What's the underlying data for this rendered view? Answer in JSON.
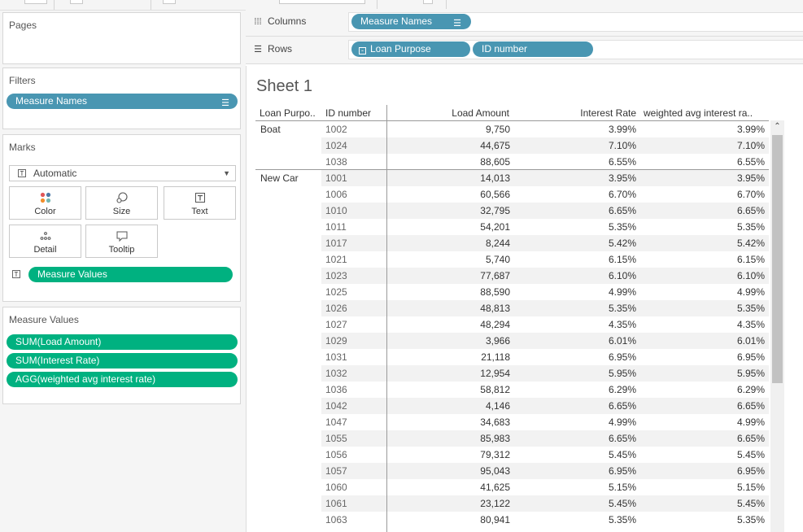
{
  "panels": {
    "pages_title": "Pages",
    "filters_title": "Filters",
    "marks_title": "Marks",
    "measure_values_title": "Measure Values"
  },
  "filters": {
    "pill": "Measure Names"
  },
  "marks": {
    "type": "Automatic",
    "buttons": {
      "color": "Color",
      "size": "Size",
      "text": "Text",
      "detail": "Detail",
      "tooltip": "Tooltip"
    },
    "text_pill": "Measure Values"
  },
  "measure_values": [
    "SUM(Load Amount)",
    "SUM(Interest Rate)",
    "AGG(weighted avg interest rate)"
  ],
  "shelves": {
    "columns_label": "Columns",
    "columns_pill": "Measure Names",
    "rows_label": "Rows",
    "rows_pills": [
      "Loan Purpose",
      "ID number"
    ]
  },
  "sheet": {
    "title": "Sheet 1",
    "headers": [
      "Loan Purpo..",
      "ID number",
      "Load Amount",
      "Interest Rate",
      "weighted avg interest ra.."
    ],
    "groups": [
      {
        "label": "Boat",
        "rows": [
          {
            "id": "1002",
            "amount": "9,750",
            "rate": "3.99%",
            "wavg": "3.99%"
          },
          {
            "id": "1024",
            "amount": "44,675",
            "rate": "7.10%",
            "wavg": "7.10%"
          },
          {
            "id": "1038",
            "amount": "88,605",
            "rate": "6.55%",
            "wavg": "6.55%"
          }
        ]
      },
      {
        "label": "New Car",
        "rows": [
          {
            "id": "1001",
            "amount": "14,013",
            "rate": "3.95%",
            "wavg": "3.95%"
          },
          {
            "id": "1006",
            "amount": "60,566",
            "rate": "6.70%",
            "wavg": "6.70%"
          },
          {
            "id": "1010",
            "amount": "32,795",
            "rate": "6.65%",
            "wavg": "6.65%"
          },
          {
            "id": "1011",
            "amount": "54,201",
            "rate": "5.35%",
            "wavg": "5.35%"
          },
          {
            "id": "1017",
            "amount": "8,244",
            "rate": "5.42%",
            "wavg": "5.42%"
          },
          {
            "id": "1021",
            "amount": "5,740",
            "rate": "6.15%",
            "wavg": "6.15%"
          },
          {
            "id": "1023",
            "amount": "77,687",
            "rate": "6.10%",
            "wavg": "6.10%"
          },
          {
            "id": "1025",
            "amount": "88,590",
            "rate": "4.99%",
            "wavg": "4.99%"
          },
          {
            "id": "1026",
            "amount": "48,813",
            "rate": "5.35%",
            "wavg": "5.35%"
          },
          {
            "id": "1027",
            "amount": "48,294",
            "rate": "4.35%",
            "wavg": "4.35%"
          },
          {
            "id": "1029",
            "amount": "3,966",
            "rate": "6.01%",
            "wavg": "6.01%"
          },
          {
            "id": "1031",
            "amount": "21,118",
            "rate": "6.95%",
            "wavg": "6.95%"
          },
          {
            "id": "1032",
            "amount": "12,954",
            "rate": "5.95%",
            "wavg": "5.95%"
          },
          {
            "id": "1036",
            "amount": "58,812",
            "rate": "6.29%",
            "wavg": "6.29%"
          },
          {
            "id": "1042",
            "amount": "4,146",
            "rate": "6.65%",
            "wavg": "6.65%"
          },
          {
            "id": "1047",
            "amount": "34,683",
            "rate": "4.99%",
            "wavg": "4.99%"
          },
          {
            "id": "1055",
            "amount": "85,983",
            "rate": "6.65%",
            "wavg": "6.65%"
          },
          {
            "id": "1056",
            "amount": "79,312",
            "rate": "5.45%",
            "wavg": "5.45%"
          },
          {
            "id": "1057",
            "amount": "95,043",
            "rate": "6.95%",
            "wavg": "6.95%"
          },
          {
            "id": "1060",
            "amount": "41,625",
            "rate": "5.15%",
            "wavg": "5.15%"
          },
          {
            "id": "1061",
            "amount": "23,122",
            "rate": "5.45%",
            "wavg": "5.45%"
          },
          {
            "id": "1063",
            "amount": "80,941",
            "rate": "5.35%",
            "wavg": "5.35%"
          }
        ]
      }
    ]
  },
  "colors": {
    "dimension_pill": "#4996b2",
    "measure_pill": "#00b180",
    "row_band": "#f2f2f2"
  },
  "icons": {
    "columns": "columns-icon",
    "rows": "rows-icon",
    "sort": "sort-descending-icon",
    "collapse": "collapse-minus-icon",
    "scroll_up": "scroll-up-arrow-icon"
  }
}
